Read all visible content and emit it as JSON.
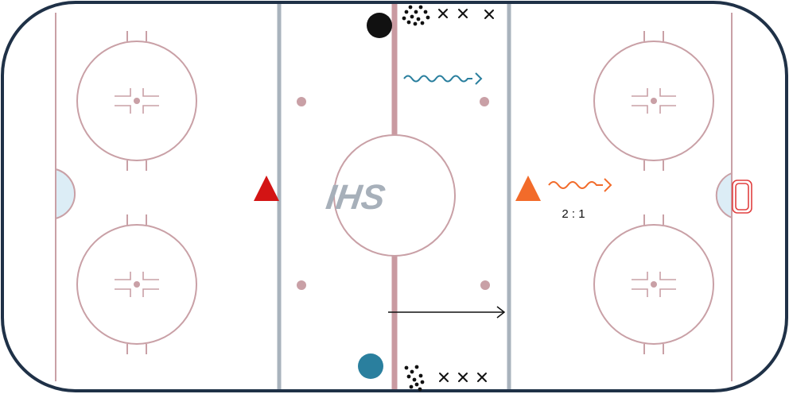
{
  "logo": {
    "text": "IHS",
    "color": "#a7b0ba"
  },
  "annotations": {
    "ratio": "2 : 1"
  },
  "colors": {
    "boards": "#1f3147",
    "rink_lines": "#c9a0a6",
    "center_line": "#c99aa1",
    "blue_lines": "#a9b3bd",
    "crease": "#dcedf6",
    "goal": "#e04040",
    "team_red": "#d31414",
    "team_orange": "#f26b2a",
    "team_teal": "#2a7f9e",
    "black": "#111111"
  },
  "markers": [
    {
      "kind": "triangle",
      "color_key": "team_red",
      "semantic": "red-triangle-marker"
    },
    {
      "kind": "triangle",
      "color_key": "team_orange",
      "semantic": "orange-triangle-marker"
    },
    {
      "kind": "disc",
      "color_key": "black",
      "semantic": "black-player-disc"
    },
    {
      "kind": "disc",
      "color_key": "team_teal",
      "semantic": "teal-player-disc"
    }
  ],
  "drill_paths": [
    {
      "kind": "wavy-arrow",
      "color_key": "team_teal",
      "semantic": "teal-skating-path"
    },
    {
      "kind": "wavy-arrow",
      "color_key": "team_orange",
      "semantic": "orange-skating-path"
    },
    {
      "kind": "straight-arrow",
      "color_key": "black",
      "semantic": "pass-arrow"
    }
  ],
  "icons": [
    "pucks-icon",
    "cone-x-icon"
  ]
}
